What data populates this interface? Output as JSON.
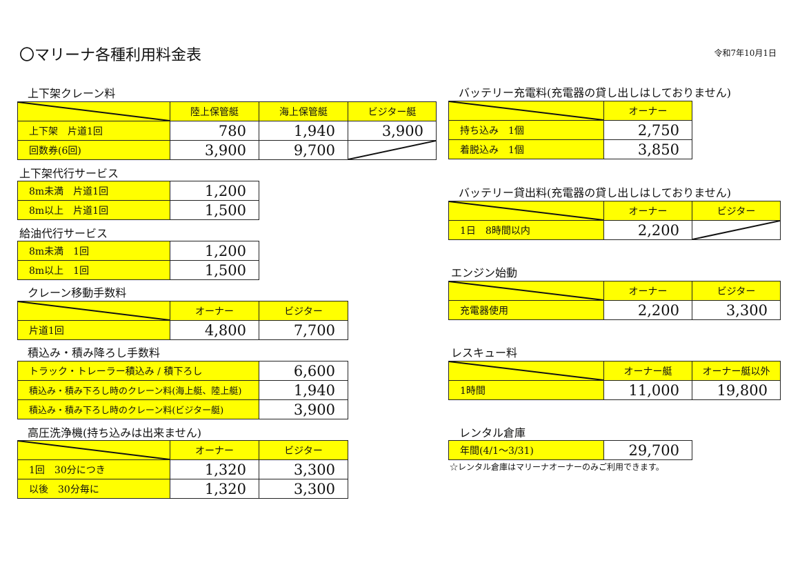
{
  "title": "〇マリーナ各種利用料金表",
  "date": "令和7年10月1日",
  "colors": {
    "label_fill": "#ffff00",
    "border": "#222222"
  },
  "tables": [
    {
      "id": "crane",
      "title": "上下架クレーン料",
      "header": [
        "陸上保管艇",
        "海上保管艇",
        "ビジター艇"
      ],
      "rows": [
        {
          "label": "上下架　片道1回",
          "values": [
            "780",
            "1,940",
            "3,900"
          ]
        },
        {
          "label": "回数券(6回)",
          "values": [
            "3,900",
            "9,700",
            null
          ]
        }
      ]
    },
    {
      "id": "haul-service",
      "title": "上下架代行サービス",
      "header": null,
      "rows": [
        {
          "label": "8m未満　片道1回",
          "values": [
            "1,200"
          ]
        },
        {
          "label": "8m以上　片道1回",
          "values": [
            "1,500"
          ]
        }
      ]
    },
    {
      "id": "fuel-service",
      "title": "給油代行サービス",
      "header": null,
      "rows": [
        {
          "label": "8m未満　1回",
          "values": [
            "1,200"
          ]
        },
        {
          "label": "8m以上　1回",
          "values": [
            "1,500"
          ]
        }
      ]
    },
    {
      "id": "crane-move",
      "title": "クレーン移動手数料",
      "header": [
        "オーナー",
        "ビジター"
      ],
      "rows": [
        {
          "label": "片道1回",
          "values": [
            "4,800",
            "7,700"
          ]
        }
      ]
    },
    {
      "id": "loading",
      "title": "積込み・積み降ろし手数料",
      "header": null,
      "rows": [
        {
          "label": "トラック・トレーラー積込み / 積下ろし",
          "values": [
            "6,600"
          ]
        },
        {
          "label": "積込み・積み下ろし時のクレーン料(海上艇、陸上艇)",
          "values": [
            "1,940"
          ]
        },
        {
          "label": "積込み・積み下ろし時のクレーン料(ビジター艇)",
          "values": [
            "3,900"
          ]
        }
      ]
    },
    {
      "id": "washer",
      "title": "高圧洗浄機(持ち込みは出来ません)",
      "header": [
        "オーナー",
        "ビジター"
      ],
      "rows": [
        {
          "label": "1回　30分につき",
          "values": [
            "1,320",
            "3,300"
          ]
        },
        {
          "label": "以後　30分毎に",
          "values": [
            "1,320",
            "3,300"
          ]
        }
      ]
    },
    {
      "id": "battery-charge",
      "title": "バッテリー充電料(充電器の貸し出しはしておりません)",
      "header": [
        "オーナー"
      ],
      "rows": [
        {
          "label": "持ち込み　1個",
          "values": [
            "2,750"
          ]
        },
        {
          "label": "着脱込み　1個",
          "values": [
            "3,850"
          ]
        }
      ]
    },
    {
      "id": "battery-rental",
      "title": "バッテリー貸出料(充電器の貸し出しはしておりません)",
      "header": [
        "オーナー",
        "ビジター"
      ],
      "rows": [
        {
          "label": "1日　8時間以内",
          "values": [
            "2,200",
            null
          ]
        }
      ]
    },
    {
      "id": "engine-start",
      "title": "エンジン始動",
      "header": [
        "オーナー",
        "ビジター"
      ],
      "rows": [
        {
          "label": "充電器使用",
          "values": [
            "2,200",
            "3,300"
          ]
        }
      ]
    },
    {
      "id": "rescue",
      "title": "レスキュー料",
      "header": [
        "オーナー艇",
        "オーナー艇以外"
      ],
      "rows": [
        {
          "label": "1時間",
          "values": [
            "11,000",
            "19,800"
          ]
        }
      ]
    },
    {
      "id": "rental-storage",
      "title": "レンタル倉庫",
      "header": null,
      "rows": [
        {
          "label": "年間(4/1～3/31)",
          "values": [
            "29,700"
          ]
        }
      ]
    }
  ],
  "rental_note": "☆レンタル倉庫はマリーナオーナーのみご利用できます。"
}
